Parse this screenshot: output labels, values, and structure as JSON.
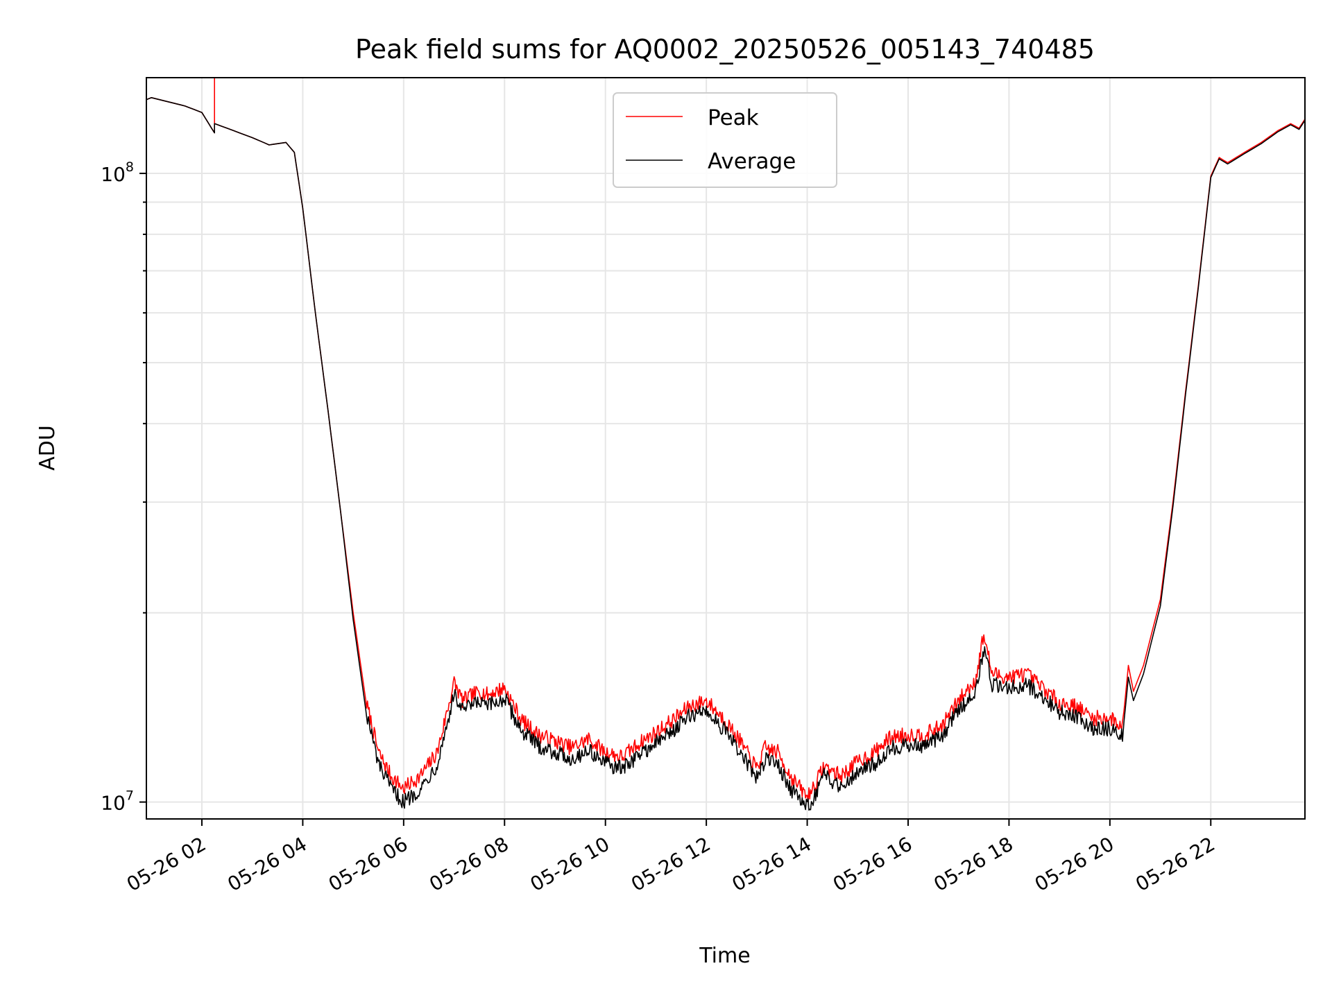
{
  "chart_data": {
    "type": "line",
    "title": "Peak field sums for AQ0002_20250526_005143_740485",
    "xlabel": "Time",
    "ylabel": "ADU",
    "yscale": "log",
    "xlim": [
      "2025-05-26 00:54",
      "2025-05-26 23:52"
    ],
    "ylim": [
      9400000,
      142000000
    ],
    "x_ticks": [
      "05-26 02",
      "05-26 04",
      "05-26 06",
      "05-26 08",
      "05-26 10",
      "05-26 12",
      "05-26 14",
      "05-26 16",
      "05-26 18",
      "05-26 20",
      "05-26 22"
    ],
    "y_ticks": [
      {
        "value": 10000000,
        "base": "10",
        "exp": "7"
      },
      {
        "value": 100000000,
        "base": "10",
        "exp": "8"
      }
    ],
    "grid": true,
    "legend_position": "upper center",
    "series": [
      {
        "name": "Peak",
        "color": "#ff0000",
        "x": [
          "2025-05-26 00:54",
          "2025-05-26 01:00",
          "2025-05-26 01:20",
          "2025-05-26 01:40",
          "2025-05-26 02:00",
          "2025-05-26 02:15",
          "2025-05-26 02:15",
          "2025-05-26 02:15",
          "2025-05-26 02:30",
          "2025-05-26 03:00",
          "2025-05-26 03:20",
          "2025-05-26 03:40",
          "2025-05-26 03:50",
          "2025-05-26 04:00",
          "2025-05-26 04:15",
          "2025-05-26 04:30",
          "2025-05-26 04:45",
          "2025-05-26 05:00",
          "2025-05-26 05:15",
          "2025-05-26 05:30",
          "2025-05-26 05:45",
          "2025-05-26 06:00",
          "2025-05-26 06:20",
          "2025-05-26 06:40",
          "2025-05-26 07:00",
          "2025-05-26 07:10",
          "2025-05-26 07:30",
          "2025-05-26 07:40",
          "2025-05-26 08:00",
          "2025-05-26 08:20",
          "2025-05-26 08:40",
          "2025-05-26 09:00",
          "2025-05-26 09:20",
          "2025-05-26 09:40",
          "2025-05-26 10:00",
          "2025-05-26 10:20",
          "2025-05-26 10:40",
          "2025-05-26 11:00",
          "2025-05-26 11:20",
          "2025-05-26 11:40",
          "2025-05-26 12:00",
          "2025-05-26 12:20",
          "2025-05-26 12:40",
          "2025-05-26 13:00",
          "2025-05-26 13:10",
          "2025-05-26 13:25",
          "2025-05-26 13:40",
          "2025-05-26 14:00",
          "2025-05-26 14:10",
          "2025-05-26 14:20",
          "2025-05-26 14:40",
          "2025-05-26 15:00",
          "2025-05-26 15:20",
          "2025-05-26 15:40",
          "2025-05-26 16:00",
          "2025-05-26 16:20",
          "2025-05-26 16:40",
          "2025-05-26 17:00",
          "2025-05-26 17:20",
          "2025-05-26 17:30",
          "2025-05-26 17:40",
          "2025-05-26 18:00",
          "2025-05-26 18:20",
          "2025-05-26 18:40",
          "2025-05-26 19:00",
          "2025-05-26 19:20",
          "2025-05-26 19:40",
          "2025-05-26 20:00",
          "2025-05-26 20:15",
          "2025-05-26 20:22",
          "2025-05-26 20:28",
          "2025-05-26 20:40",
          "2025-05-26 21:00",
          "2025-05-26 21:15",
          "2025-05-26 21:30",
          "2025-05-26 21:45",
          "2025-05-26 22:00",
          "2025-05-26 22:10",
          "2025-05-26 22:20",
          "2025-05-26 22:40",
          "2025-05-26 23:00",
          "2025-05-26 23:20",
          "2025-05-26 23:35",
          "2025-05-26 23:45",
          "2025-05-26 23:52"
        ],
        "values": [
          131000000,
          132000000,
          130000000,
          128000000,
          125000000,
          116000000,
          142000000,
          120000000,
          118000000,
          114000000,
          111000000,
          112000000,
          108000000,
          88000000,
          60000000,
          42000000,
          29000000,
          20000000,
          14500000,
          12000000,
          11000000,
          10500000,
          11000000,
          12000000,
          15500000,
          14500000,
          15000000,
          14800000,
          15200000,
          13500000,
          12800000,
          12500000,
          12200000,
          12600000,
          12000000,
          11800000,
          12400000,
          12900000,
          13500000,
          14200000,
          14500000,
          13600000,
          12500000,
          11300000,
          12200000,
          12000000,
          11000000,
          10200000,
          10700000,
          11400000,
          11000000,
          11600000,
          12000000,
          12700000,
          12800000,
          12800000,
          13200000,
          14500000,
          15600000,
          18500000,
          16000000,
          15800000,
          16000000,
          15200000,
          14400000,
          14200000,
          13600000,
          13600000,
          13200000,
          16500000,
          15000000,
          16500000,
          21000000,
          30000000,
          45000000,
          66000000,
          99000000,
          106000000,
          104000000,
          108000000,
          112000000,
          117000000,
          120000000,
          118000000,
          122000000
        ]
      },
      {
        "name": "Average",
        "color": "#000000",
        "x": [
          "2025-05-26 00:54",
          "2025-05-26 01:00",
          "2025-05-26 01:20",
          "2025-05-26 01:40",
          "2025-05-26 02:00",
          "2025-05-26 02:15",
          "2025-05-26 02:15",
          "2025-05-26 02:30",
          "2025-05-26 03:00",
          "2025-05-26 03:20",
          "2025-05-26 03:40",
          "2025-05-26 03:50",
          "2025-05-26 04:00",
          "2025-05-26 04:15",
          "2025-05-26 04:30",
          "2025-05-26 04:45",
          "2025-05-26 05:00",
          "2025-05-26 05:15",
          "2025-05-26 05:30",
          "2025-05-26 05:45",
          "2025-05-26 06:00",
          "2025-05-26 06:20",
          "2025-05-26 06:40",
          "2025-05-26 07:00",
          "2025-05-26 07:10",
          "2025-05-26 07:30",
          "2025-05-26 07:40",
          "2025-05-26 08:00",
          "2025-05-26 08:20",
          "2025-05-26 08:40",
          "2025-05-26 09:00",
          "2025-05-26 09:20",
          "2025-05-26 09:40",
          "2025-05-26 10:00",
          "2025-05-26 10:20",
          "2025-05-26 10:40",
          "2025-05-26 11:00",
          "2025-05-26 11:20",
          "2025-05-26 11:40",
          "2025-05-26 12:00",
          "2025-05-26 12:20",
          "2025-05-26 12:40",
          "2025-05-26 13:00",
          "2025-05-26 13:10",
          "2025-05-26 13:25",
          "2025-05-26 13:40",
          "2025-05-26 14:00",
          "2025-05-26 14:10",
          "2025-05-26 14:20",
          "2025-05-26 14:40",
          "2025-05-26 15:00",
          "2025-05-26 15:20",
          "2025-05-26 15:40",
          "2025-05-26 16:00",
          "2025-05-26 16:20",
          "2025-05-26 16:40",
          "2025-05-26 17:00",
          "2025-05-26 17:20",
          "2025-05-26 17:30",
          "2025-05-26 17:40",
          "2025-05-26 18:00",
          "2025-05-26 18:20",
          "2025-05-26 18:40",
          "2025-05-26 19:00",
          "2025-05-26 19:20",
          "2025-05-26 19:40",
          "2025-05-26 20:00",
          "2025-05-26 20:15",
          "2025-05-26 20:22",
          "2025-05-26 20:28",
          "2025-05-26 20:40",
          "2025-05-26 21:00",
          "2025-05-26 21:15",
          "2025-05-26 21:30",
          "2025-05-26 21:45",
          "2025-05-26 22:00",
          "2025-05-26 22:10",
          "2025-05-26 22:20",
          "2025-05-26 22:40",
          "2025-05-26 23:00",
          "2025-05-26 23:20",
          "2025-05-26 23:35",
          "2025-05-26 23:45",
          "2025-05-26 23:52"
        ],
        "values": [
          131000000,
          132000000,
          130000000,
          128000000,
          125000000,
          116000000,
          120000000,
          118000000,
          114000000,
          111000000,
          112000000,
          108000000,
          88000000,
          60000000,
          42000000,
          29000000,
          19500000,
          14000000,
          11500000,
          10500000,
          10000000,
          10500000,
          11500000,
          14800000,
          14000000,
          14400000,
          14200000,
          14600000,
          13000000,
          12300000,
          12000000,
          11700000,
          12100000,
          11500000,
          11300000,
          11900000,
          12400000,
          13000000,
          13700000,
          14000000,
          13100000,
          12000000,
          10900000,
          11700000,
          11500000,
          10500000,
          9800000,
          10300000,
          11000000,
          10600000,
          11200000,
          11500000,
          12200000,
          12300000,
          12300000,
          12700000,
          14000000,
          15000000,
          17500000,
          15400000,
          15200000,
          15400000,
          14700000,
          13900000,
          13700000,
          13100000,
          13100000,
          12700000,
          15800000,
          14500000,
          16000000,
          20500000,
          29500000,
          44500000,
          65500000,
          98500000,
          105500000,
          103500000,
          107500000,
          111500000,
          116500000,
          119500000,
          117500000,
          121500000
        ]
      }
    ]
  }
}
